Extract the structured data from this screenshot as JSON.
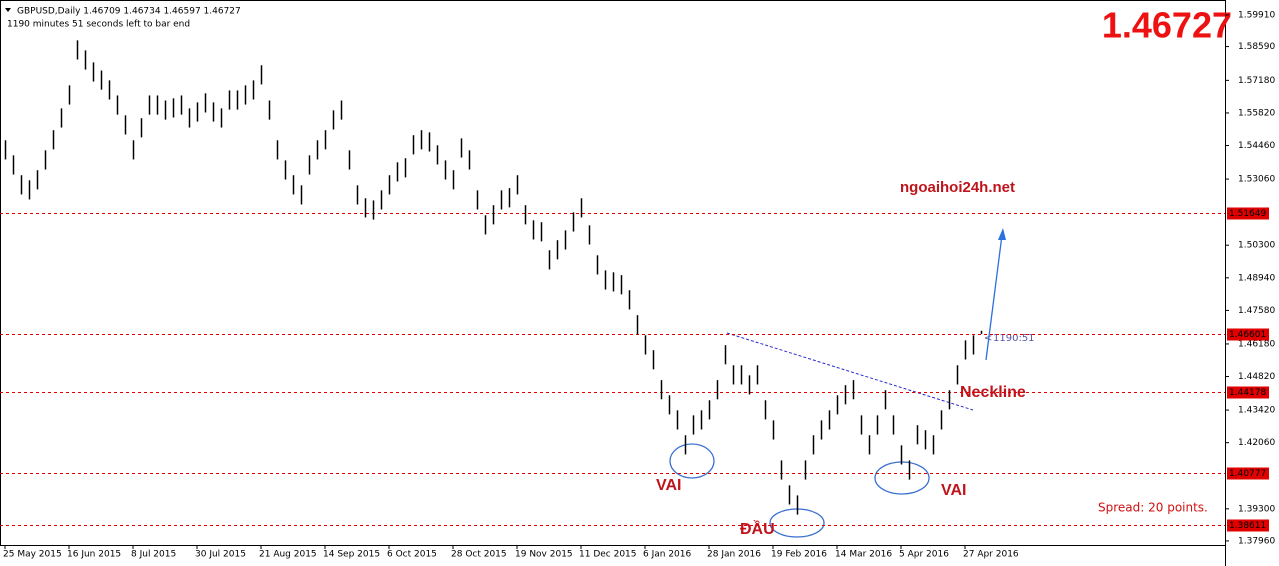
{
  "chart_data": {
    "type": "ohlc",
    "title": "GBPUSD,Daily  1.46709 1.46734 1.46597 1.46727",
    "subtitle": "1190 minutes 51 seconds left to bar end",
    "color": "#000000",
    "categories": [
      "25 May 2015",
      null,
      null,
      null,
      null,
      null,
      null,
      null,
      "16 Jun 2015",
      null,
      null,
      null,
      null,
      null,
      null,
      null,
      "8 Jul 2015",
      null,
      null,
      null,
      null,
      null,
      null,
      null,
      "30 Jul 2015",
      null,
      null,
      null,
      null,
      null,
      null,
      null,
      "21 Aug 2015",
      null,
      null,
      null,
      null,
      null,
      null,
      null,
      "14 Sep 2015",
      null,
      null,
      null,
      null,
      null,
      null,
      null,
      "6 Oct 2015",
      null,
      null,
      null,
      null,
      null,
      null,
      null,
      "28 Oct 2015",
      null,
      null,
      null,
      null,
      null,
      null,
      null,
      "19 Nov 2015",
      null,
      null,
      null,
      null,
      null,
      null,
      null,
      "11 Dec 2015",
      null,
      null,
      null,
      null,
      null,
      null,
      null,
      "6 Jan 2016",
      null,
      null,
      null,
      null,
      null,
      null,
      null,
      "28 Jan 2016",
      null,
      null,
      null,
      null,
      null,
      null,
      null,
      "19 Feb 2016",
      null,
      null,
      null,
      null,
      null,
      null,
      null,
      "14 Mar 2016",
      null,
      null,
      null,
      null,
      null,
      null,
      null,
      "5 Apr 2016",
      null,
      null,
      null,
      null,
      null,
      null,
      null,
      "27 Apr 2016",
      null,
      null
    ],
    "high": [
      1.5468,
      1.5405,
      1.5322,
      1.5301,
      1.5343,
      1.5426,
      1.551,
      1.5601,
      1.5697,
      1.5885,
      1.5843,
      1.5793,
      1.5759,
      1.5718,
      1.5655,
      1.5572,
      1.5468,
      1.556,
      1.5655,
      1.5655,
      1.5634,
      1.5643,
      1.5655,
      1.5601,
      1.5626,
      1.5664,
      1.5626,
      1.5601,
      1.5676,
      1.5676,
      1.5697,
      1.5718,
      1.5781,
      1.5634,
      1.5468,
      1.5384,
      1.5322,
      1.528,
      1.5405,
      1.5468,
      1.551,
      1.5593,
      1.5634,
      1.5426,
      1.528,
      1.5226,
      1.5217,
      1.5259,
      1.5322,
      1.5376,
      1.5393,
      1.5489,
      1.551,
      1.5501,
      1.5447,
      1.5384,
      1.5343,
      1.5476,
      1.5426,
      1.5259,
      1.5155,
      1.5197,
      1.5259,
      1.5268,
      1.5322,
      1.5197,
      1.5134,
      1.5126,
      1.5009,
      1.5051,
      1.5092,
      1.5167,
      1.5226,
      1.5113,
      1.4988,
      1.4925,
      1.4917,
      1.4905,
      1.4842,
      1.4738,
      1.4654,
      1.4592,
      1.4467,
      1.4404,
      1.4341,
      1.4237,
      1.432,
      1.4341,
      1.4383,
      1.4467,
      1.4613,
      1.4529,
      1.4529,
      1.4487,
      1.4529,
      1.4383,
      1.4299,
      1.4132,
      1.4028,
      1.3986,
      1.4132,
      1.4237,
      1.4299,
      1.4341,
      1.4404,
      1.4446,
      1.4467,
      1.432,
      1.4237,
      1.432,
      1.4425,
      1.432,
      1.4195,
      1.4132,
      1.4279,
      1.4258,
      1.4237,
      1.4341,
      1.4425,
      1.4529,
      1.4633,
      1.4654,
      1.4673
    ],
    "low": [
      1.5388,
      1.5325,
      1.5242,
      1.5221,
      1.5263,
      1.5346,
      1.543,
      1.5521,
      1.5617,
      1.5805,
      1.5763,
      1.5713,
      1.5679,
      1.5638,
      1.5575,
      1.5492,
      1.5388,
      1.548,
      1.5575,
      1.5575,
      1.5554,
      1.5563,
      1.5575,
      1.5521,
      1.5546,
      1.5584,
      1.5546,
      1.5521,
      1.5596,
      1.5596,
      1.5617,
      1.5638,
      1.5701,
      1.5554,
      1.5388,
      1.5304,
      1.5242,
      1.52,
      1.5325,
      1.5388,
      1.543,
      1.5513,
      1.5554,
      1.5346,
      1.52,
      1.5146,
      1.5137,
      1.5179,
      1.5242,
      1.5296,
      1.5313,
      1.5409,
      1.543,
      1.5421,
      1.5367,
      1.5304,
      1.5263,
      1.5396,
      1.5346,
      1.5179,
      1.5075,
      1.5117,
      1.5179,
      1.5188,
      1.5242,
      1.5117,
      1.5054,
      1.5046,
      1.4929,
      1.4971,
      1.5012,
      1.5087,
      1.5146,
      1.5033,
      1.4908,
      1.4845,
      1.4837,
      1.4825,
      1.4762,
      1.4658,
      1.4574,
      1.4512,
      1.4387,
      1.4324,
      1.4261,
      1.4157,
      1.424,
      1.4261,
      1.4303,
      1.4387,
      1.4533,
      1.4449,
      1.4449,
      1.4407,
      1.4449,
      1.4303,
      1.4219,
      1.4052,
      1.3948,
      1.3906,
      1.4052,
      1.4157,
      1.4219,
      1.4261,
      1.4324,
      1.4366,
      1.4387,
      1.424,
      1.4157,
      1.424,
      1.4345,
      1.424,
      1.4115,
      1.4052,
      1.4199,
      1.4178,
      1.4157,
      1.4261,
      1.4345,
      1.4449,
      1.4553,
      1.4574,
      1.466
    ],
    "ylim": [
      1.3779,
      1.6045
    ],
    "yticks": [
      {
        "value": 1.5991,
        "label": "1.59910"
      },
      {
        "value": 1.5859,
        "label": "1.58590"
      },
      {
        "value": 1.5718,
        "label": "1.57180"
      },
      {
        "value": 1.5582,
        "label": "1.55820"
      },
      {
        "value": 1.5446,
        "label": "1.54460"
      },
      {
        "value": 1.5306,
        "label": "1.53060"
      },
      {
        "value": 1.503,
        "label": "1.50300"
      },
      {
        "value": 1.4894,
        "label": "1.48940"
      },
      {
        "value": 1.4758,
        "label": "1.47580"
      },
      {
        "value": 1.4618,
        "label": "1.46180"
      },
      {
        "value": 1.4482,
        "label": "1.44820"
      },
      {
        "value": 1.4342,
        "label": "1.43420"
      },
      {
        "value": 1.4206,
        "label": "1.42060"
      },
      {
        "value": 1.393,
        "label": "1.39300"
      },
      {
        "value": 1.3796,
        "label": "1.37960"
      }
    ],
    "levels": [
      1.51649,
      1.46601,
      1.44178,
      1.40777,
      1.38611
    ],
    "level_color": "#e00000",
    "annotations": {
      "price": "1.46727",
      "site": "ngoaihoi24h.net",
      "neckline": "Neckline",
      "left_shoulder": "VAI",
      "head": "ĐẦU",
      "right_shoulder": "VAI",
      "spread": "Spread: 20 points.",
      "timer": "1190:51"
    }
  }
}
